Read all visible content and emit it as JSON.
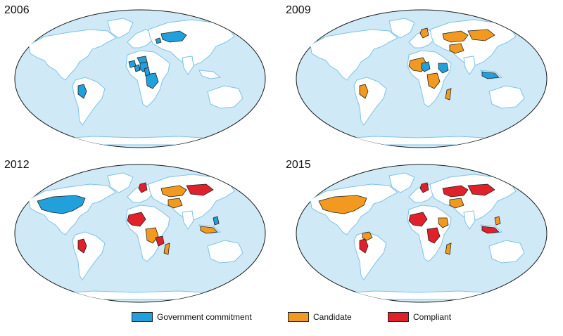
{
  "colors": {
    "ocean": "#cfe9f7",
    "land": "#ffffff",
    "coast": "#7ec3e6",
    "border": "#222222",
    "government_commitment": "#21a0db",
    "candidate": "#f29a1f",
    "compliant": "#e0202a"
  },
  "panels": [
    {
      "year": "2006",
      "countries": [
        {
          "name": "Kazakhstan",
          "status": "government_commitment"
        },
        {
          "name": "Azerbaijan",
          "status": "government_commitment"
        },
        {
          "name": "Peru",
          "status": "government_commitment"
        },
        {
          "name": "Nigeria",
          "status": "government_commitment"
        },
        {
          "name": "Ghana",
          "status": "government_commitment"
        },
        {
          "name": "Guinea",
          "status": "government_commitment"
        },
        {
          "name": "Niger",
          "status": "government_commitment"
        },
        {
          "name": "DR Congo",
          "status": "government_commitment"
        },
        {
          "name": "Cameroon",
          "status": "government_commitment"
        }
      ]
    },
    {
      "year": "2009",
      "countries": [
        {
          "name": "Kazakhstan",
          "status": "candidate"
        },
        {
          "name": "Mongolia",
          "status": "candidate"
        },
        {
          "name": "Afghanistan",
          "status": "candidate"
        },
        {
          "name": "Norway",
          "status": "candidate"
        },
        {
          "name": "Peru",
          "status": "candidate"
        },
        {
          "name": "West Africa",
          "status": "candidate"
        },
        {
          "name": "Nigeria",
          "status": "government_commitment"
        },
        {
          "name": "DR Congo",
          "status": "candidate"
        },
        {
          "name": "Madagascar",
          "status": "candidate"
        },
        {
          "name": "Ethiopia",
          "status": "government_commitment"
        },
        {
          "name": "Indonesia",
          "status": "government_commitment"
        }
      ]
    },
    {
      "year": "2012",
      "countries": [
        {
          "name": "United States",
          "status": "government_commitment"
        },
        {
          "name": "Kazakhstan",
          "status": "candidate"
        },
        {
          "name": "Mongolia",
          "status": "compliant"
        },
        {
          "name": "Afghanistan",
          "status": "candidate"
        },
        {
          "name": "Norway",
          "status": "compliant"
        },
        {
          "name": "Peru",
          "status": "compliant"
        },
        {
          "name": "West Africa",
          "status": "compliant"
        },
        {
          "name": "DR Congo",
          "status": "candidate"
        },
        {
          "name": "Tanzania",
          "status": "compliant"
        },
        {
          "name": "Madagascar",
          "status": "candidate"
        },
        {
          "name": "Indonesia",
          "status": "candidate"
        },
        {
          "name": "Philippines",
          "status": "government_commitment"
        }
      ]
    },
    {
      "year": "2015",
      "countries": [
        {
          "name": "United States",
          "status": "candidate"
        },
        {
          "name": "Kazakhstan",
          "status": "compliant"
        },
        {
          "name": "Mongolia",
          "status": "compliant"
        },
        {
          "name": "Afghanistan",
          "status": "candidate"
        },
        {
          "name": "Norway",
          "status": "compliant"
        },
        {
          "name": "Peru",
          "status": "compliant"
        },
        {
          "name": "Colombia",
          "status": "candidate"
        },
        {
          "name": "West Africa",
          "status": "compliant"
        },
        {
          "name": "DR Congo",
          "status": "compliant"
        },
        {
          "name": "Ethiopia",
          "status": "candidate"
        },
        {
          "name": "Madagascar",
          "status": "candidate"
        },
        {
          "name": "Indonesia",
          "status": "compliant"
        },
        {
          "name": "Philippines",
          "status": "candidate"
        }
      ]
    }
  ],
  "legend": [
    {
      "label": "Government commitment",
      "status": "government_commitment"
    },
    {
      "label": "Candidate",
      "status": "candidate"
    },
    {
      "label": "Compliant",
      "status": "compliant"
    }
  ]
}
